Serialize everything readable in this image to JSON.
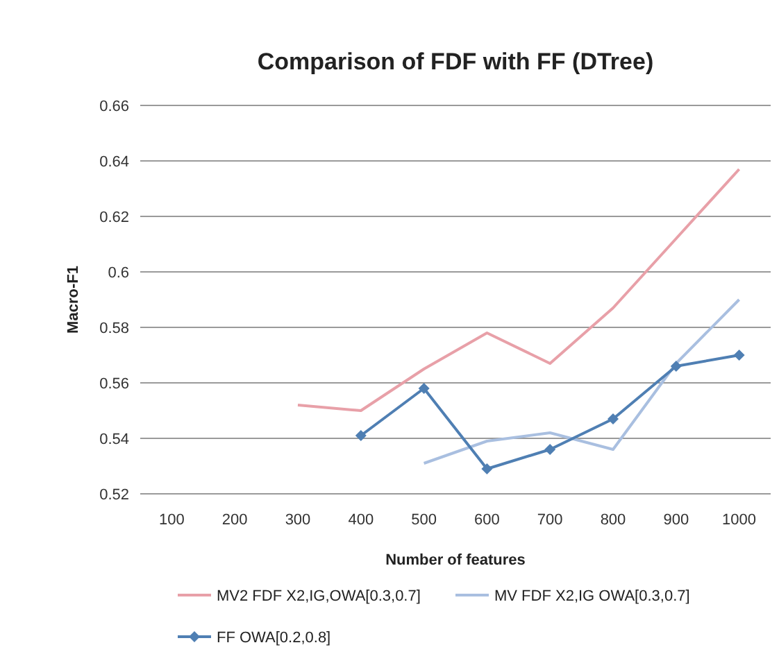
{
  "chart_data": {
    "type": "line",
    "title": "Comparison of FDF with FF (DTree)",
    "xlabel": "Number of features",
    "ylabel": "Macro-F1",
    "categories": [
      "100",
      "200",
      "300",
      "400",
      "500",
      "600",
      "700",
      "800",
      "900",
      "1000"
    ],
    "ylim": [
      0.52,
      0.66
    ],
    "yticks": [
      0.52,
      0.54,
      0.56,
      0.58,
      0.6,
      0.62,
      0.64,
      0.66
    ],
    "grid": "y",
    "legend": "bottom",
    "series": [
      {
        "name": "MV2 FDF X2,IG,OWA[0.3,0.7]",
        "color": "#e8a0a8",
        "marker": "none",
        "values": [
          null,
          null,
          0.552,
          0.55,
          0.565,
          0.578,
          0.567,
          0.587,
          0.612,
          0.637
        ]
      },
      {
        "name": "MV FDF X2,IG OWA[0.3,0.7]",
        "color": "#a9bfe0",
        "marker": "none",
        "values": [
          null,
          null,
          null,
          null,
          0.531,
          0.539,
          0.542,
          0.536,
          0.567,
          0.59
        ]
      },
      {
        "name": "FF OWA[0.2,0.8]",
        "color": "#4f7fb3",
        "marker": "diamond",
        "values": [
          null,
          null,
          null,
          0.541,
          0.558,
          0.529,
          0.536,
          0.547,
          0.566,
          0.57
        ]
      }
    ]
  }
}
